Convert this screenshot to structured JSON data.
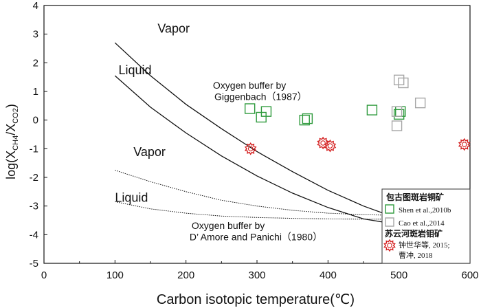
{
  "chart_data": {
    "type": "scatter",
    "title": "",
    "xlabel": "Carbon isotopic temperature(℃)",
    "ylabel_main": "log(X",
    "ylabel_sub1": "CH4",
    "ylabel_mid": "/X",
    "ylabel_sub2": "CO2",
    "ylabel_end": ")",
    "xlim": [
      0,
      600
    ],
    "ylim": [
      -5,
      4
    ],
    "xticks": [
      0,
      100,
      200,
      300,
      400,
      500,
      600
    ],
    "yticks": [
      -5,
      -4,
      -3,
      -2,
      -1,
      0,
      1,
      2,
      3,
      4
    ],
    "grid": false,
    "legend_position": "bottom-right",
    "legend": {
      "group1_title": "包古图斑岩铜矿",
      "group2_title": "苏云河斑岩钼矿",
      "entries": [
        {
          "label": "Shen et al.,2010b",
          "marker": "square",
          "color": "#2e9a3c"
        },
        {
          "label": "Cao et al.,2014",
          "marker": "square",
          "color": "#a6a6a6"
        },
        {
          "label": "钟世华等, 2015;",
          "label2": "曹冲, 2018",
          "marker": "star",
          "color": "#d42020"
        }
      ]
    },
    "series": [
      {
        "name": "Shen et al.,2010b",
        "marker": "square",
        "color": "#2e9a3c",
        "points": [
          [
            290,
            0.4
          ],
          [
            306,
            0.1
          ],
          [
            313,
            0.3
          ],
          [
            367,
            0.0
          ],
          [
            371,
            0.05
          ],
          [
            462,
            0.35
          ],
          [
            500,
            0.2
          ],
          [
            502,
            0.3
          ]
        ]
      },
      {
        "name": "Cao et al.,2014",
        "marker": "square",
        "color": "#a6a6a6",
        "points": [
          [
            500,
            1.4
          ],
          [
            506,
            1.3
          ],
          [
            530,
            0.6
          ],
          [
            497,
            0.3
          ],
          [
            497,
            -0.2
          ]
        ]
      },
      {
        "name": "钟世华等, 2015; 曹冲, 2018",
        "marker": "star",
        "color": "#d42020",
        "points": [
          [
            291,
            -1.0
          ],
          [
            393,
            -0.8
          ],
          [
            403,
            -0.9
          ],
          [
            592,
            -0.85
          ]
        ]
      }
    ],
    "curves": [
      {
        "id": "giggenbach-vapor",
        "style": "solid",
        "points": [
          [
            100,
            2.7
          ],
          [
            150,
            1.55
          ],
          [
            200,
            0.55
          ],
          [
            250,
            -0.3
          ],
          [
            300,
            -1.1
          ],
          [
            350,
            -1.8
          ],
          [
            400,
            -2.45
          ],
          [
            450,
            -3.0
          ],
          [
            500,
            -3.45
          ],
          [
            550,
            -3.85
          ]
        ]
      },
      {
        "id": "giggenbach-liquid",
        "style": "solid",
        "points": [
          [
            100,
            1.55
          ],
          [
            150,
            0.45
          ],
          [
            200,
            -0.45
          ],
          [
            250,
            -1.25
          ],
          [
            300,
            -1.95
          ],
          [
            350,
            -2.55
          ],
          [
            400,
            -3.05
          ],
          [
            450,
            -3.45
          ],
          [
            500,
            -3.65
          ],
          [
            550,
            -3.75
          ]
        ]
      },
      {
        "id": "damore-vapor",
        "style": "dotted",
        "points": [
          [
            100,
            -1.75
          ],
          [
            150,
            -2.15
          ],
          [
            200,
            -2.5
          ],
          [
            250,
            -2.8
          ],
          [
            300,
            -3.0
          ],
          [
            350,
            -3.15
          ],
          [
            400,
            -3.25
          ],
          [
            450,
            -3.3
          ],
          [
            500,
            -3.33
          ],
          [
            550,
            -3.35
          ]
        ]
      },
      {
        "id": "damore-liquid",
        "style": "dotted",
        "points": [
          [
            100,
            -2.85
          ],
          [
            150,
            -3.1
          ],
          [
            200,
            -3.25
          ],
          [
            250,
            -3.35
          ],
          [
            300,
            -3.4
          ],
          [
            350,
            -3.43
          ],
          [
            400,
            -3.45
          ],
          [
            450,
            -3.46
          ],
          [
            500,
            -3.46
          ],
          [
            550,
            -3.46
          ]
        ]
      }
    ],
    "annotations": [
      {
        "id": "vapor-upper",
        "text": "Vapor",
        "x": 160,
        "y": 3.05
      },
      {
        "id": "liquid-upper",
        "text": "Liquid",
        "x": 105,
        "y": 1.6
      },
      {
        "id": "giggenbach-line1",
        "text": "Oxygen buffer by",
        "x": 238,
        "y": 1.1
      },
      {
        "id": "giggenbach-line2",
        "text": "Giggenbach（1987）",
        "x": 240,
        "y": 0.7
      },
      {
        "id": "vapor-lower",
        "text": "Vapor",
        "x": 126,
        "y": -1.25
      },
      {
        "id": "liquid-lower",
        "text": "Liquid",
        "x": 100,
        "y": -2.85
      },
      {
        "id": "damore-line1",
        "text": "Oxygen buffer by",
        "x": 208,
        "y": -3.8
      },
      {
        "id": "damore-line2",
        "text": "D’ Amore and Panichi（1980）",
        "x": 205,
        "y": -4.2
      }
    ]
  }
}
